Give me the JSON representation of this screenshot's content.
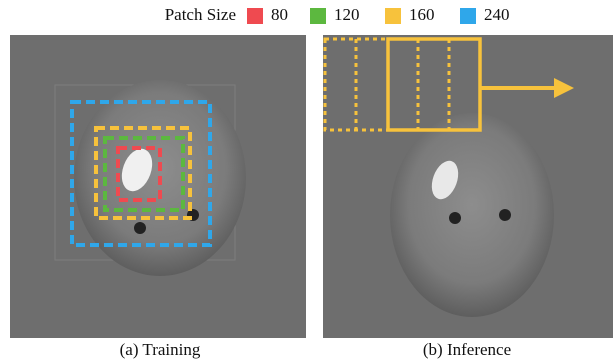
{
  "legend": {
    "title": "Patch Size",
    "items": [
      {
        "label": "80",
        "color": "#ef4a50"
      },
      {
        "label": "120",
        "color": "#5cb83f"
      },
      {
        "label": "160",
        "color": "#f7c23c"
      },
      {
        "label": "240",
        "color": "#2fa7ea"
      }
    ]
  },
  "panels": [
    {
      "caption": "(a) Training"
    },
    {
      "caption": "(b) Inference"
    }
  ]
}
